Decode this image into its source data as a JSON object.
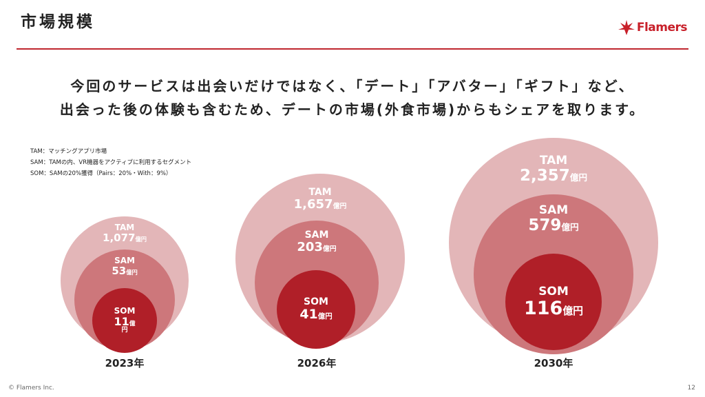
{
  "header": {
    "title": "市場規模",
    "logo_text": "Flamers"
  },
  "headline": {
    "line1": "今回のサービスは出会いだけではなく、「デート」「アバター」「ギフト」など、",
    "line2": "出会った後の体験も含むため、デートの市場(外食市場)からもシェアを取ります。"
  },
  "legend": [
    "TAM：マッチングアプリ市場",
    "SAM：TAMの内、VR機器をアクティブに利用するセグメント",
    "SOM：SAMの20%獲得（Pairs：20%・With：9%）"
  ],
  "markets": [
    {
      "year": "2023年",
      "tam": {
        "label": "TAM",
        "value": "1,077",
        "unit": "億円"
      },
      "sam": {
        "label": "SAM",
        "value": "53",
        "unit": "億円"
      },
      "som": {
        "label": "SOM",
        "value": "11",
        "unit": "億",
        "unit2": "円"
      }
    },
    {
      "year": "2026年",
      "tam": {
        "label": "TAM",
        "value": "1,657",
        "unit": "億円"
      },
      "sam": {
        "label": "SAM",
        "value": "203",
        "unit": "億円"
      },
      "som": {
        "label": "SOM",
        "value": "41",
        "unit": "億円"
      }
    },
    {
      "year": "2030年",
      "tam": {
        "label": "TAM",
        "value": "2,357",
        "unit": "億円"
      },
      "sam": {
        "label": "SAM",
        "value": "579",
        "unit": "億円"
      },
      "som": {
        "label": "SOM",
        "value": "116",
        "unit": "億円"
      }
    }
  ],
  "footer": {
    "copyright": "© Flamers Inc.",
    "page_number": "12"
  },
  "colors": {
    "accent": "#c0262e",
    "tam": "#e3b6b8",
    "sam": "#cd777b",
    "som": "#b01f28"
  }
}
